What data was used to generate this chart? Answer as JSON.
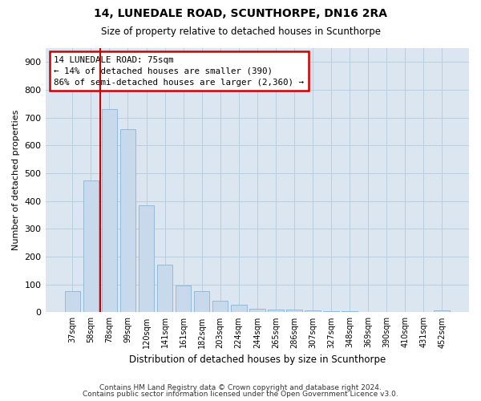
{
  "title": "14, LUNEDALE ROAD, SCUNTHORPE, DN16 2RA",
  "subtitle": "Size of property relative to detached houses in Scunthorpe",
  "xlabel": "Distribution of detached houses by size in Scunthorpe",
  "ylabel": "Number of detached properties",
  "categories": [
    "37sqm",
    "58sqm",
    "78sqm",
    "99sqm",
    "120sqm",
    "141sqm",
    "161sqm",
    "182sqm",
    "203sqm",
    "224sqm",
    "244sqm",
    "265sqm",
    "286sqm",
    "307sqm",
    "327sqm",
    "348sqm",
    "369sqm",
    "390sqm",
    "410sqm",
    "431sqm",
    "452sqm"
  ],
  "values": [
    75,
    475,
    730,
    660,
    385,
    170,
    97,
    77,
    42,
    28,
    12,
    11,
    10,
    7,
    5,
    4,
    0,
    0,
    0,
    0,
    8
  ],
  "bar_color": "#c9d9ec",
  "bar_edge_color": "#8ab4d4",
  "annotation_text": "14 LUNEDALE ROAD: 75sqm\n← 14% of detached houses are smaller (390)\n86% of semi-detached houses are larger (2,360) →",
  "annotation_box_edge_color": "#cc0000",
  "annotation_box_face_color": "#ffffff",
  "vline_color": "#cc0000",
  "vline_x": 1.5,
  "ylim": [
    0,
    950
  ],
  "yticks": [
    0,
    100,
    200,
    300,
    400,
    500,
    600,
    700,
    800,
    900
  ],
  "plot_bg_color": "#dce6f1",
  "background_color": "#ffffff",
  "grid_color": "#b8cfe0",
  "footer_line1": "Contains HM Land Registry data © Crown copyright and database right 2024.",
  "footer_line2": "Contains public sector information licensed under the Open Government Licence v3.0."
}
